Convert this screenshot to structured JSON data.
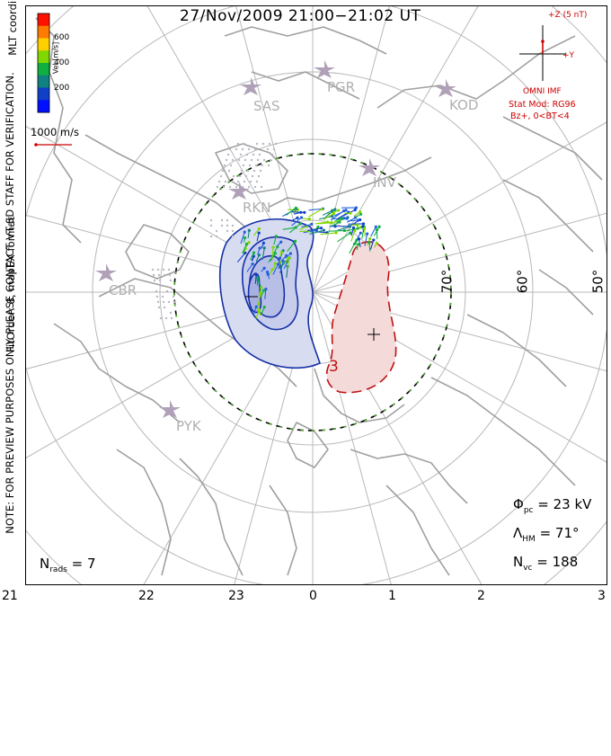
{
  "title": "27/Nov/2009  21:00−21:02  UT",
  "side_note": "NOTE: FOR PREVIEW PURPOSES ONLY. PLEASE CONTACT VT-SD STAFF FOR VERIFICATION.",
  "fit_note": "FitOrder: 8,  mapEX format",
  "coord_label": "MLT coordinates",
  "vel_scale": {
    "label": "Vel [m/s]",
    "ticks": [
      "600",
      "400",
      "200"
    ],
    "colors": [
      "#ff1100",
      "#ff7a00",
      "#ffd000",
      "#80d800",
      "#10b040",
      "#108080",
      "#1040c8",
      "#0010ff"
    ]
  },
  "ref_vector": {
    "label": "1000 m/s",
    "color": "#cc0000"
  },
  "imf": {
    "z_label": "+Z (5 nT)",
    "y_label": "+Y",
    "source": "OMNI IMF",
    "model": "Stat Mod: RG96",
    "cond": "Bz+, 0<BT<4",
    "color": "#cc0000"
  },
  "stations": [
    {
      "name": "SAS"
    },
    {
      "name": "PGR"
    },
    {
      "name": "KOD"
    },
    {
      "name": "INV"
    },
    {
      "name": "RKN"
    },
    {
      "name": "CBR"
    },
    {
      "name": "PYK"
    }
  ],
  "lat_labels": [
    "70°",
    "60°",
    "50°"
  ],
  "contour_label": "3",
  "stats": {
    "phi_sym": "Φ",
    "phi_sub": "pc",
    "phi_val": "= 23 kV",
    "lam_sym": "Λ",
    "lam_sub": "HM",
    "lam_val": "= 71°",
    "nvc_sym": "N",
    "nvc_sub": "vc",
    "nvc_val": "= 188",
    "nrads_sym": "N",
    "nrads_sub": "rads",
    "nrads_val": "= 7"
  },
  "mlt_ticks": [
    "21",
    "22",
    "23",
    "0",
    "1",
    "2",
    "3"
  ],
  "colors": {
    "grid": "#b8b8b8",
    "coast": "#a0a0a0",
    "neg_contour": "#1530a8",
    "neg_fill": "#d8dcf0",
    "pos_contour": "#c01010",
    "pos_fill": "#f5dada",
    "station": "#b0a0b8"
  }
}
